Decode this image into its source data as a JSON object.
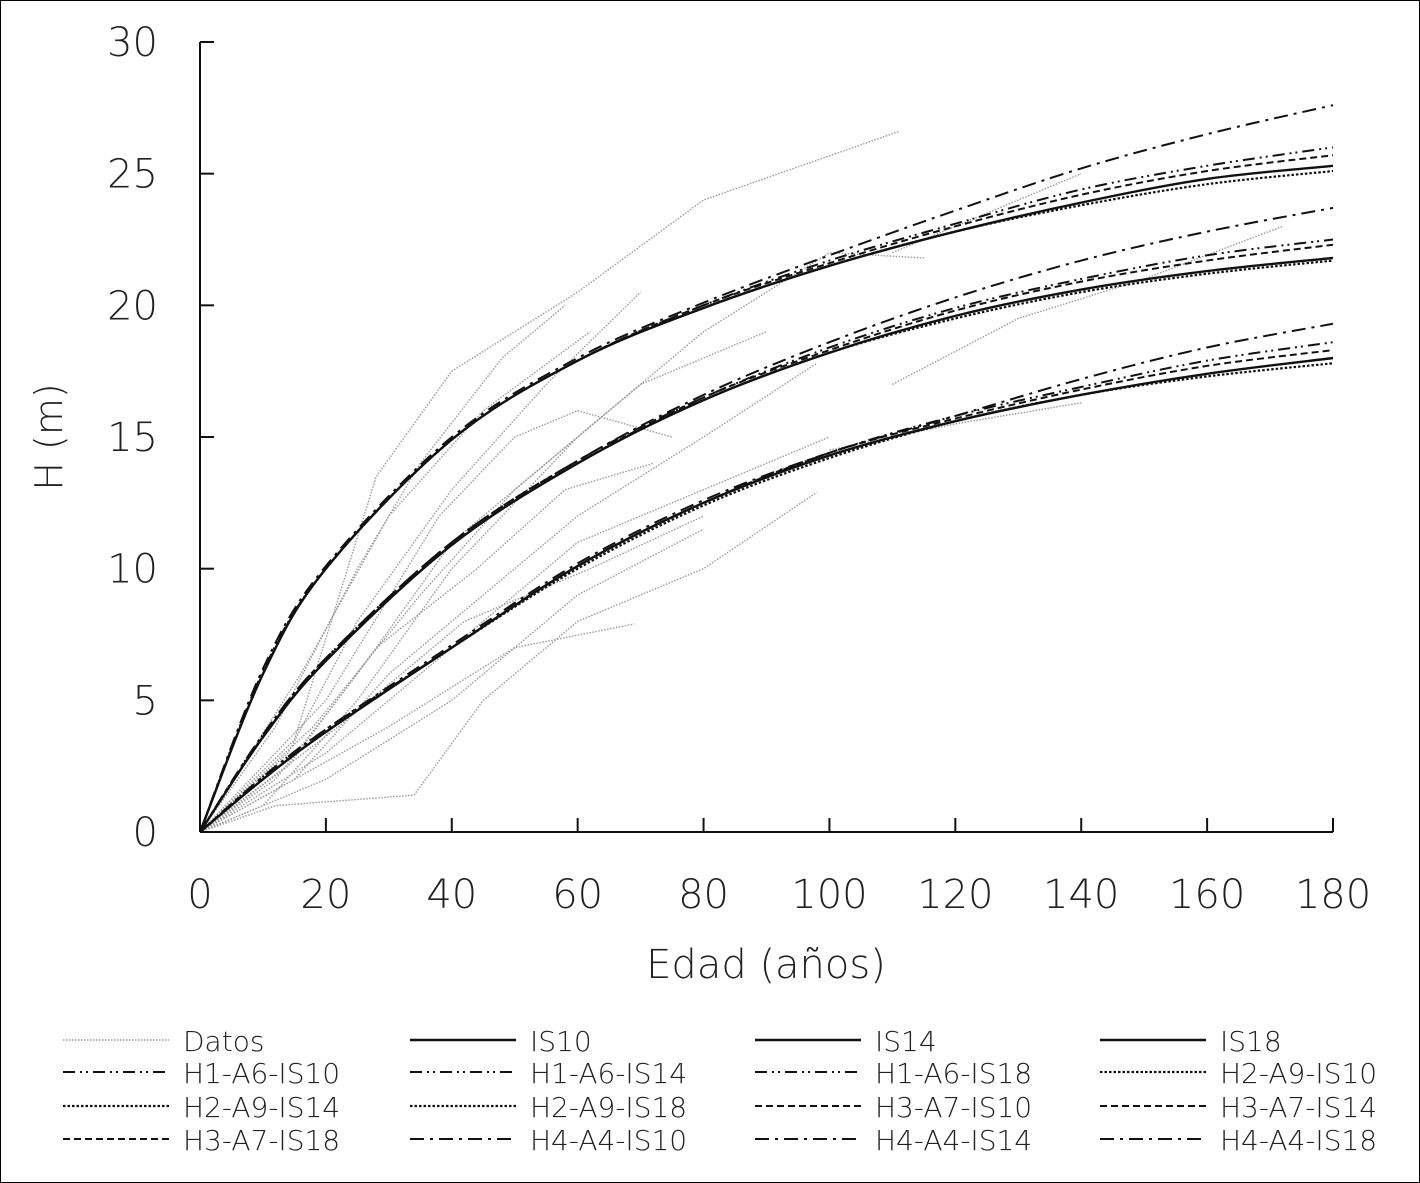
{
  "chart_data": {
    "type": "line",
    "title": "",
    "xlabel": "Edad (años)",
    "ylabel": "H (m)",
    "xlim": [
      0,
      180
    ],
    "ylim": [
      0,
      30
    ],
    "xticks": [
      0,
      20,
      40,
      60,
      80,
      100,
      120,
      140,
      160,
      180
    ],
    "yticks": [
      0,
      5,
      10,
      15,
      20,
      25,
      30
    ],
    "grid": false,
    "legend_placement": "bottom",
    "ages": [
      0,
      10,
      20,
      40,
      60,
      80,
      100,
      120,
      140,
      160,
      180
    ],
    "series": [
      {
        "name": "IS10",
        "style": "solid",
        "values": [
          0,
          2.0,
          3.8,
          7.0,
          10.1,
          12.5,
          14.3,
          15.6,
          16.6,
          17.4,
          18.0
        ]
      },
      {
        "name": "IS14",
        "style": "solid",
        "values": [
          0,
          3.6,
          6.5,
          10.9,
          14.0,
          16.4,
          18.2,
          19.6,
          20.6,
          21.3,
          21.8
        ]
      },
      {
        "name": "IS18",
        "style": "solid",
        "values": [
          0,
          6.0,
          10.0,
          14.9,
          17.9,
          19.9,
          21.5,
          22.8,
          23.9,
          24.8,
          25.3
        ]
      },
      {
        "name": "H1-A6-IS10",
        "style": "dash-dot-dot",
        "values": [
          0,
          2.1,
          3.9,
          7.0,
          10.1,
          12.5,
          14.4,
          15.8,
          16.9,
          17.9,
          18.6
        ]
      },
      {
        "name": "H1-A6-IS14",
        "style": "dash-dot-dot",
        "values": [
          0,
          3.7,
          6.6,
          11.0,
          14.1,
          16.5,
          18.4,
          19.9,
          21.0,
          21.9,
          22.5
        ]
      },
      {
        "name": "H1-A6-IS18",
        "style": "dash-dot-dot",
        "values": [
          0,
          6.1,
          10.0,
          14.9,
          17.9,
          20.0,
          21.7,
          23.1,
          24.4,
          25.3,
          26.0
        ]
      },
      {
        "name": "H2-A9-IS10",
        "style": "dotted",
        "values": [
          0,
          2.0,
          3.8,
          7.0,
          10.0,
          12.4,
          14.2,
          15.6,
          16.6,
          17.3,
          17.8
        ]
      },
      {
        "name": "H2-A9-IS14",
        "style": "dotted",
        "values": [
          0,
          3.6,
          6.5,
          10.9,
          14.0,
          16.4,
          18.2,
          19.5,
          20.5,
          21.2,
          21.7
        ]
      },
      {
        "name": "H2-A9-IS18",
        "style": "dotted",
        "values": [
          0,
          6.0,
          10.0,
          14.9,
          17.9,
          19.9,
          21.5,
          22.8,
          23.8,
          24.6,
          25.1
        ]
      },
      {
        "name": "H3-A7-IS10",
        "style": "dashed",
        "values": [
          0,
          2.0,
          3.8,
          7.0,
          10.1,
          12.5,
          14.4,
          15.7,
          16.8,
          17.7,
          18.3
        ]
      },
      {
        "name": "H3-A7-IS14",
        "style": "dashed",
        "values": [
          0,
          3.6,
          6.5,
          10.9,
          14.0,
          16.5,
          18.3,
          19.8,
          20.9,
          21.7,
          22.3
        ]
      },
      {
        "name": "H3-A7-IS18",
        "style": "dashed",
        "values": [
          0,
          6.0,
          10.0,
          14.9,
          17.9,
          20.0,
          21.6,
          23.0,
          24.2,
          25.1,
          25.7
        ]
      },
      {
        "name": "H4-A4-IS10",
        "style": "dash-dot",
        "values": [
          0,
          2.1,
          3.9,
          7.1,
          10.2,
          12.6,
          14.4,
          15.8,
          17.2,
          18.4,
          19.3
        ]
      },
      {
        "name": "H4-A4-IS14",
        "style": "dash-dot",
        "values": [
          0,
          3.7,
          6.6,
          11.0,
          14.1,
          16.6,
          18.6,
          20.3,
          21.7,
          22.8,
          23.7
        ]
      },
      {
        "name": "H4-A4-IS18",
        "style": "dash-dot",
        "values": [
          0,
          6.2,
          10.1,
          15.0,
          18.0,
          20.1,
          21.9,
          23.6,
          25.2,
          26.5,
          27.6
        ]
      }
    ],
    "datos": {
      "name": "Datos",
      "style": "dotted-grey",
      "lines": [
        [
          [
            0,
            0
          ],
          [
            15,
            3.5
          ],
          [
            28,
            13.5
          ],
          [
            40,
            17.5
          ],
          [
            60,
            20.5
          ],
          [
            80,
            24
          ],
          [
            111,
            26.6
          ]
        ],
        [
          [
            0,
            0
          ],
          [
            12,
            4
          ],
          [
            25,
            10
          ],
          [
            35,
            14
          ],
          [
            48,
            18
          ],
          [
            58,
            20
          ]
        ],
        [
          [
            0,
            0
          ],
          [
            14,
            3
          ],
          [
            25,
            8
          ],
          [
            40,
            13
          ],
          [
            55,
            17
          ],
          [
            70,
            20.5
          ]
        ],
        [
          [
            0,
            0
          ],
          [
            10,
            1
          ],
          [
            25,
            5
          ],
          [
            40,
            10
          ],
          [
            60,
            15
          ],
          [
            80,
            19
          ],
          [
            100,
            22
          ],
          [
            115,
            21.8
          ]
        ],
        [
          [
            0,
            0
          ],
          [
            15,
            2
          ],
          [
            30,
            6
          ],
          [
            45,
            9
          ],
          [
            60,
            12
          ],
          [
            80,
            15
          ],
          [
            98,
            17.8
          ]
        ],
        [
          [
            0,
            0
          ],
          [
            12,
            1
          ],
          [
            34,
            1.4
          ],
          [
            45,
            5
          ],
          [
            60,
            8
          ],
          [
            80,
            10
          ],
          [
            98,
            12.9
          ]
        ],
        [
          [
            0,
            0
          ],
          [
            15,
            2
          ],
          [
            30,
            4
          ],
          [
            50,
            7
          ],
          [
            69,
            7.9
          ]
        ],
        [
          [
            0,
            0
          ],
          [
            20,
            3
          ],
          [
            40,
            7
          ],
          [
            60,
            11
          ],
          [
            80,
            13
          ],
          [
            100,
            15
          ]
        ],
        [
          [
            0,
            0
          ],
          [
            18,
            4
          ],
          [
            35,
            9
          ],
          [
            50,
            13
          ],
          [
            65,
            16
          ]
        ],
        [
          [
            0,
            0
          ],
          [
            20,
            5
          ],
          [
            38,
            12
          ],
          [
            50,
            15
          ],
          [
            60,
            16
          ],
          [
            75,
            15
          ]
        ],
        [
          [
            0,
            0
          ],
          [
            12,
            2
          ],
          [
            25,
            6
          ],
          [
            40,
            11
          ],
          [
            55,
            14
          ],
          [
            70,
            17
          ],
          [
            90,
            19
          ]
        ],
        [
          [
            0,
            0
          ],
          [
            20,
            2
          ],
          [
            40,
            5
          ],
          [
            60,
            9
          ],
          [
            80,
            11.5
          ]
        ],
        [
          [
            100,
            14.5
          ],
          [
            120,
            15.5
          ],
          [
            140,
            16.3
          ]
        ],
        [
          [
            110,
            17
          ],
          [
            130,
            19.5
          ],
          [
            150,
            21
          ],
          [
            172,
            23
          ]
        ],
        [
          [
            110,
            22
          ],
          [
            125,
            23.5
          ],
          [
            140,
            25
          ]
        ],
        [
          [
            0,
            0
          ],
          [
            16,
            6
          ],
          [
            30,
            12
          ],
          [
            45,
            16
          ],
          [
            62,
            19
          ]
        ],
        [
          [
            0,
            0
          ],
          [
            14,
            2.5
          ],
          [
            28,
            7
          ],
          [
            44,
            10
          ],
          [
            58,
            13
          ],
          [
            72,
            14
          ]
        ],
        [
          [
            0,
            0
          ],
          [
            22,
            4
          ],
          [
            42,
            8
          ],
          [
            62,
            10
          ],
          [
            80,
            12
          ]
        ]
      ]
    },
    "legend": [
      "Datos",
      "IS10",
      "IS14",
      "IS18",
      "H1-A6-IS10",
      "H1-A6-IS14",
      "H1-A6-IS18",
      "H2-A9-IS10",
      "H2-A9-IS14",
      "H2-A9-IS18",
      "H3-A7-IS10",
      "H3-A7-IS14",
      "H3-A7-IS18",
      "H4-A4-IS10",
      "H4-A4-IS14",
      "H4-A4-IS18"
    ],
    "legend_styles": [
      "dotted-grey",
      "solid",
      "solid",
      "solid",
      "dash-dot-dot",
      "dash-dot-dot",
      "dash-dot-dot",
      "dotted",
      "dotted",
      "dotted",
      "dashed",
      "dashed",
      "dashed",
      "dash-dot",
      "dash-dot",
      "dash-dot"
    ]
  }
}
